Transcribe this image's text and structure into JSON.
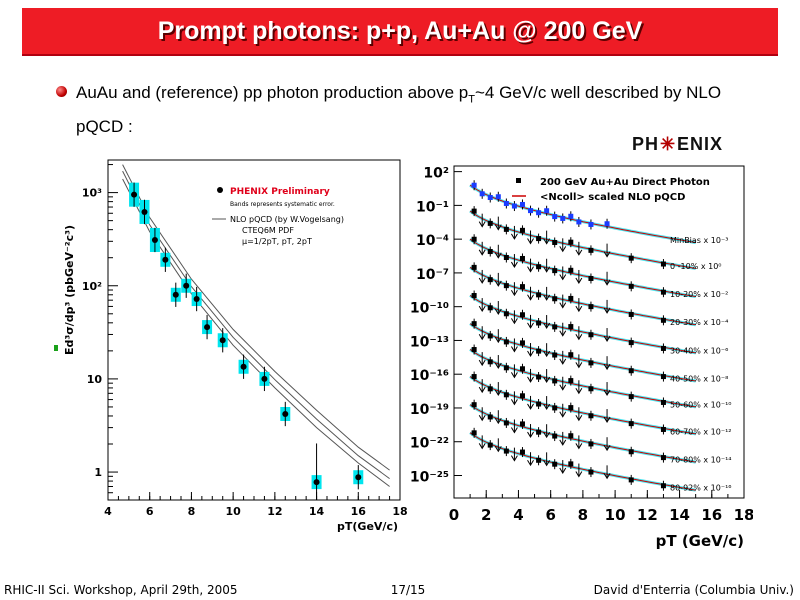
{
  "slide": {
    "title": "Prompt photons: p+p, Au+Au @ 200 GeV",
    "bullet_pre": "AuAu and (reference) pp photon production above p",
    "bullet_sub": "T",
    "bullet_post": "~4 GeV/c well described by NLO pQCD :",
    "logo_left": "PH",
    "logo_mid": "✳",
    "logo_right": "ENIX",
    "footer_left": "RHIC-II Sci. Workshop, April 29th, 2005",
    "footer_center": "17/15",
    "footer_right": "David d'Enterria (Columbia Univ.)"
  },
  "chart_data": [
    {
      "type": "scatter",
      "title": "",
      "xlabel": "pT(GeV/c)",
      "ylabel": "Ed³σ/dp³ (pbGeV⁻²c³)",
      "xlim": [
        4,
        18
      ],
      "ylim_log10": [
        -0.3,
        3.35
      ],
      "y_scale": "log",
      "x_ticks": [
        "4",
        "6",
        "8",
        "10",
        "12",
        "14",
        "16",
        "18"
      ],
      "y_ticks": [
        "1",
        "10",
        "10²",
        "10³"
      ],
      "legend": {
        "placement": "top-right",
        "entries": [
          "PHENIX Preliminary",
          "Bands represents systematic error.",
          "NLO pQCD (by W.Vogelsang)",
          "CTEQ6M PDF",
          "μ=1/2pT, pT, 2pT"
        ]
      },
      "series": [
        {
          "name": "PHENIX Preliminary",
          "x": [
            5.25,
            5.75,
            6.25,
            6.75,
            7.25,
            7.75,
            8.25,
            8.75,
            9.5,
            10.5,
            11.5,
            12.5,
            14.0,
            16.0
          ],
          "y": [
            950,
            620,
            310,
            190,
            80,
            100,
            72,
            36,
            26,
            13.5,
            10,
            4.2,
            0.78,
            0.88
          ]
        }
      ],
      "nlo_curves": {
        "x": [
          4.7,
          6,
          8,
          10,
          12,
          14,
          16,
          17.5
        ],
        "y": [
          [
            1400,
            380,
            82,
            23,
            8,
            3,
            1.25,
            0.7
          ],
          [
            1700,
            450,
            98,
            28,
            9.8,
            3.7,
            1.5,
            0.85
          ],
          [
            2000,
            540,
            118,
            34,
            12,
            4.6,
            1.85,
            1.05
          ]
        ]
      },
      "colors": {
        "points": "#000000",
        "bands": "#00e5ee",
        "curves": "#555555",
        "legend_red": "#e0001a"
      }
    },
    {
      "type": "scatter",
      "title": "",
      "xlabel": "pT (GeV/c)",
      "ylabel": "",
      "xlim": [
        0,
        18
      ],
      "ylim_log10": [
        -27,
        2.5
      ],
      "y_scale": "log",
      "x_ticks": [
        "0",
        "2",
        "4",
        "6",
        "8",
        "10",
        "12",
        "14",
        "16",
        "18"
      ],
      "y_ticks": [
        "10²",
        "10⁻¹",
        "10⁻⁴",
        "10⁻⁷",
        "10⁻¹⁰",
        "10⁻¹³",
        "10⁻¹⁶",
        "10⁻¹⁹",
        "10⁻²²",
        "10⁻²⁵"
      ],
      "legend": {
        "placement": "top-right",
        "entries": [
          "200 GeV Au+Au Direct Photon",
          "<Ncoll> scaled NLO pQCD"
        ]
      },
      "x_points": [
        1.25,
        1.75,
        2.25,
        2.75,
        3.25,
        3.75,
        4.25,
        4.75,
        5.25,
        5.75,
        6.25,
        6.75,
        7.25,
        7.75,
        8.5,
        9.5,
        11,
        13
      ],
      "series": [
        {
          "name": "MinBias x 10⁻³",
          "scale_label": "MinBias x 10⁻³",
          "base_log10": 0.8
        },
        {
          "name": "0 -10% x 10⁰",
          "scale_label": "0 -10%   x 10⁰",
          "base_log10": -1.5
        },
        {
          "name": "10-20% x 10⁻²",
          "scale_label": "10-20%  x 10⁻²",
          "base_log10": -4.0
        },
        {
          "name": "20-30% x 10⁻⁴",
          "scale_label": "20-30%  x 10⁻⁴",
          "base_log10": -6.5
        },
        {
          "name": "30-40% x 10⁻⁶",
          "scale_label": "30-40%  x 10⁻⁶",
          "base_log10": -9.0
        },
        {
          "name": "40-50% x 10⁻⁸",
          "scale_label": "40-50%  x 10⁻⁸",
          "base_log10": -11.5
        },
        {
          "name": "50-60% x 10⁻¹⁰",
          "scale_label": "50-60%  x 10⁻¹⁰",
          "base_log10": -13.8
        },
        {
          "name": "60-70% x 10⁻¹²",
          "scale_label": "60-70%  x 10⁻¹²",
          "base_log10": -16.2
        },
        {
          "name": "70-80% x 10⁻¹⁴",
          "scale_label": "70-80%  x 10⁻¹⁴",
          "base_log10": -18.7
        },
        {
          "name": "80-92% x 10⁻¹⁶",
          "scale_label": "80-92%  x 10⁻¹⁶",
          "base_log10": -21.2
        }
      ],
      "colors": {
        "minbias": "#1a3cff",
        "points": "#000000",
        "band": "#00d8e8",
        "curve": "#cc0000"
      }
    }
  ]
}
